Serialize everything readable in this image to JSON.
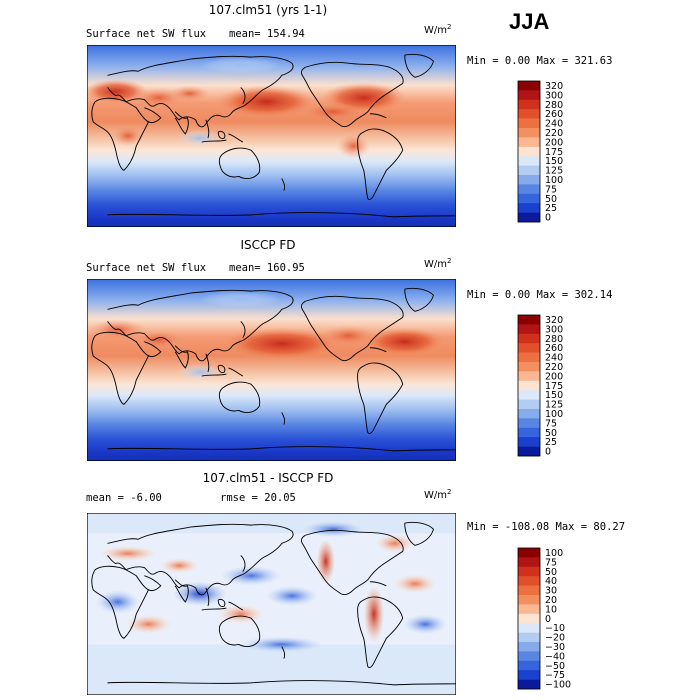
{
  "season": "JJA",
  "chart_data": [
    {
      "type": "heatmap",
      "title": "107.clm51 (yrs 1-1)",
      "left_label": "Surface net SW flux",
      "stat_label": "mean= 154.94",
      "units": "W/m",
      "units_sup": "2",
      "minmax_label": "Min =    0.00 Max = 321.63",
      "stats": {
        "mean": 154.94,
        "min": 0.0,
        "max": 321.63
      },
      "colorbar_levels": [
        "320",
        "300",
        "280",
        "260",
        "240",
        "220",
        "200",
        "175",
        "150",
        "125",
        "100",
        "75",
        "50",
        "25",
        "0"
      ],
      "colorbar_colors": [
        "#8b0000",
        "#b01414",
        "#d0301c",
        "#e0502a",
        "#ec7040",
        "#f49060",
        "#f9b792",
        "#fde4d2",
        "#dbe8f9",
        "#b3cdf2",
        "#86aaea",
        "#5986e3",
        "#3564dc",
        "#1a40ce",
        "#0a1a9a"
      ],
      "x": "longitude 0-360",
      "y": "latitude -90 to 90"
    },
    {
      "type": "heatmap",
      "title": "ISCCP FD",
      "left_label": "Surface net SW flux",
      "stat_label": "mean= 160.95",
      "units": "W/m",
      "units_sup": "2",
      "minmax_label": "Min =    0.00 Max = 302.14",
      "stats": {
        "mean": 160.95,
        "min": 0.0,
        "max": 302.14
      },
      "colorbar_levels": [
        "320",
        "300",
        "280",
        "260",
        "240",
        "220",
        "200",
        "175",
        "150",
        "125",
        "100",
        "75",
        "50",
        "25",
        "0"
      ],
      "colorbar_colors": [
        "#8b0000",
        "#b01414",
        "#d0301c",
        "#e0502a",
        "#ec7040",
        "#f49060",
        "#f9b792",
        "#fde4d2",
        "#dbe8f9",
        "#b3cdf2",
        "#86aaea",
        "#5986e3",
        "#3564dc",
        "#1a40ce",
        "#0a1a9a"
      ],
      "x": "longitude 0-360",
      "y": "latitude -90 to 90"
    },
    {
      "type": "heatmap",
      "title": "107.clm51 - ISCCP FD",
      "left_label": "mean =   -6.00",
      "stat_label": "rmse =  20.05",
      "units": "W/m",
      "units_sup": "2",
      "minmax_label": "Min = -108.08 Max =  80.27",
      "stats": {
        "mean": -6.0,
        "rmse": 20.05,
        "min": -108.08,
        "max": 80.27
      },
      "colorbar_levels": [
        "100",
        "75",
        "50",
        "40",
        "30",
        "20",
        "10",
        "0",
        "−10",
        "−20",
        "−30",
        "−40",
        "−50",
        "−75",
        "−100"
      ],
      "colorbar_colors": [
        "#8b0000",
        "#b01414",
        "#d0301c",
        "#e0502a",
        "#ec7040",
        "#f49060",
        "#f9b792",
        "#fde4d2",
        "#dbe8f9",
        "#b3cdf2",
        "#86aaea",
        "#5986e3",
        "#3564dc",
        "#1a40ce",
        "#0a1a9a"
      ],
      "x": "longitude 0-360",
      "y": "latitude -90 to 90"
    }
  ]
}
